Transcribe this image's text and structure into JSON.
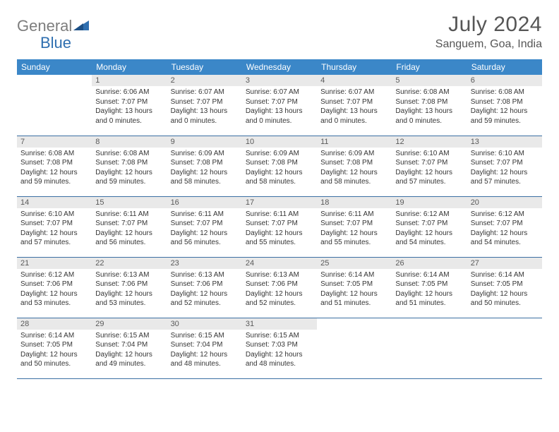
{
  "brand": {
    "part1": "General",
    "part2": "Blue"
  },
  "title": "July 2024",
  "location": "Sanguem, Goa, India",
  "colors": {
    "header_bg": "#3b87c8",
    "header_text": "#ffffff",
    "daynum_bg": "#e9e9e9",
    "daynum_text": "#5a5a5a",
    "body_text": "#353535",
    "row_border": "#3b6fa3",
    "title_text": "#565656",
    "brand_gray": "#7d7d7d",
    "brand_blue": "#2f6fb0"
  },
  "weekdays": [
    "Sunday",
    "Monday",
    "Tuesday",
    "Wednesday",
    "Thursday",
    "Friday",
    "Saturday"
  ],
  "weeks": [
    [
      {
        "n": "",
        "sr": "",
        "ss": "",
        "dl": ""
      },
      {
        "n": "1",
        "sr": "Sunrise: 6:06 AM",
        "ss": "Sunset: 7:07 PM",
        "dl": "Daylight: 13 hours and 0 minutes."
      },
      {
        "n": "2",
        "sr": "Sunrise: 6:07 AM",
        "ss": "Sunset: 7:07 PM",
        "dl": "Daylight: 13 hours and 0 minutes."
      },
      {
        "n": "3",
        "sr": "Sunrise: 6:07 AM",
        "ss": "Sunset: 7:07 PM",
        "dl": "Daylight: 13 hours and 0 minutes."
      },
      {
        "n": "4",
        "sr": "Sunrise: 6:07 AM",
        "ss": "Sunset: 7:07 PM",
        "dl": "Daylight: 13 hours and 0 minutes."
      },
      {
        "n": "5",
        "sr": "Sunrise: 6:08 AM",
        "ss": "Sunset: 7:08 PM",
        "dl": "Daylight: 13 hours and 0 minutes."
      },
      {
        "n": "6",
        "sr": "Sunrise: 6:08 AM",
        "ss": "Sunset: 7:08 PM",
        "dl": "Daylight: 12 hours and 59 minutes."
      }
    ],
    [
      {
        "n": "7",
        "sr": "Sunrise: 6:08 AM",
        "ss": "Sunset: 7:08 PM",
        "dl": "Daylight: 12 hours and 59 minutes."
      },
      {
        "n": "8",
        "sr": "Sunrise: 6:08 AM",
        "ss": "Sunset: 7:08 PM",
        "dl": "Daylight: 12 hours and 59 minutes."
      },
      {
        "n": "9",
        "sr": "Sunrise: 6:09 AM",
        "ss": "Sunset: 7:08 PM",
        "dl": "Daylight: 12 hours and 58 minutes."
      },
      {
        "n": "10",
        "sr": "Sunrise: 6:09 AM",
        "ss": "Sunset: 7:08 PM",
        "dl": "Daylight: 12 hours and 58 minutes."
      },
      {
        "n": "11",
        "sr": "Sunrise: 6:09 AM",
        "ss": "Sunset: 7:08 PM",
        "dl": "Daylight: 12 hours and 58 minutes."
      },
      {
        "n": "12",
        "sr": "Sunrise: 6:10 AM",
        "ss": "Sunset: 7:07 PM",
        "dl": "Daylight: 12 hours and 57 minutes."
      },
      {
        "n": "13",
        "sr": "Sunrise: 6:10 AM",
        "ss": "Sunset: 7:07 PM",
        "dl": "Daylight: 12 hours and 57 minutes."
      }
    ],
    [
      {
        "n": "14",
        "sr": "Sunrise: 6:10 AM",
        "ss": "Sunset: 7:07 PM",
        "dl": "Daylight: 12 hours and 57 minutes."
      },
      {
        "n": "15",
        "sr": "Sunrise: 6:11 AM",
        "ss": "Sunset: 7:07 PM",
        "dl": "Daylight: 12 hours and 56 minutes."
      },
      {
        "n": "16",
        "sr": "Sunrise: 6:11 AM",
        "ss": "Sunset: 7:07 PM",
        "dl": "Daylight: 12 hours and 56 minutes."
      },
      {
        "n": "17",
        "sr": "Sunrise: 6:11 AM",
        "ss": "Sunset: 7:07 PM",
        "dl": "Daylight: 12 hours and 55 minutes."
      },
      {
        "n": "18",
        "sr": "Sunrise: 6:11 AM",
        "ss": "Sunset: 7:07 PM",
        "dl": "Daylight: 12 hours and 55 minutes."
      },
      {
        "n": "19",
        "sr": "Sunrise: 6:12 AM",
        "ss": "Sunset: 7:07 PM",
        "dl": "Daylight: 12 hours and 54 minutes."
      },
      {
        "n": "20",
        "sr": "Sunrise: 6:12 AM",
        "ss": "Sunset: 7:07 PM",
        "dl": "Daylight: 12 hours and 54 minutes."
      }
    ],
    [
      {
        "n": "21",
        "sr": "Sunrise: 6:12 AM",
        "ss": "Sunset: 7:06 PM",
        "dl": "Daylight: 12 hours and 53 minutes."
      },
      {
        "n": "22",
        "sr": "Sunrise: 6:13 AM",
        "ss": "Sunset: 7:06 PM",
        "dl": "Daylight: 12 hours and 53 minutes."
      },
      {
        "n": "23",
        "sr": "Sunrise: 6:13 AM",
        "ss": "Sunset: 7:06 PM",
        "dl": "Daylight: 12 hours and 52 minutes."
      },
      {
        "n": "24",
        "sr": "Sunrise: 6:13 AM",
        "ss": "Sunset: 7:06 PM",
        "dl": "Daylight: 12 hours and 52 minutes."
      },
      {
        "n": "25",
        "sr": "Sunrise: 6:14 AM",
        "ss": "Sunset: 7:05 PM",
        "dl": "Daylight: 12 hours and 51 minutes."
      },
      {
        "n": "26",
        "sr": "Sunrise: 6:14 AM",
        "ss": "Sunset: 7:05 PM",
        "dl": "Daylight: 12 hours and 51 minutes."
      },
      {
        "n": "27",
        "sr": "Sunrise: 6:14 AM",
        "ss": "Sunset: 7:05 PM",
        "dl": "Daylight: 12 hours and 50 minutes."
      }
    ],
    [
      {
        "n": "28",
        "sr": "Sunrise: 6:14 AM",
        "ss": "Sunset: 7:05 PM",
        "dl": "Daylight: 12 hours and 50 minutes."
      },
      {
        "n": "29",
        "sr": "Sunrise: 6:15 AM",
        "ss": "Sunset: 7:04 PM",
        "dl": "Daylight: 12 hours and 49 minutes."
      },
      {
        "n": "30",
        "sr": "Sunrise: 6:15 AM",
        "ss": "Sunset: 7:04 PM",
        "dl": "Daylight: 12 hours and 48 minutes."
      },
      {
        "n": "31",
        "sr": "Sunrise: 6:15 AM",
        "ss": "Sunset: 7:03 PM",
        "dl": "Daylight: 12 hours and 48 minutes."
      },
      {
        "n": "",
        "sr": "",
        "ss": "",
        "dl": ""
      },
      {
        "n": "",
        "sr": "",
        "ss": "",
        "dl": ""
      },
      {
        "n": "",
        "sr": "",
        "ss": "",
        "dl": ""
      }
    ]
  ]
}
